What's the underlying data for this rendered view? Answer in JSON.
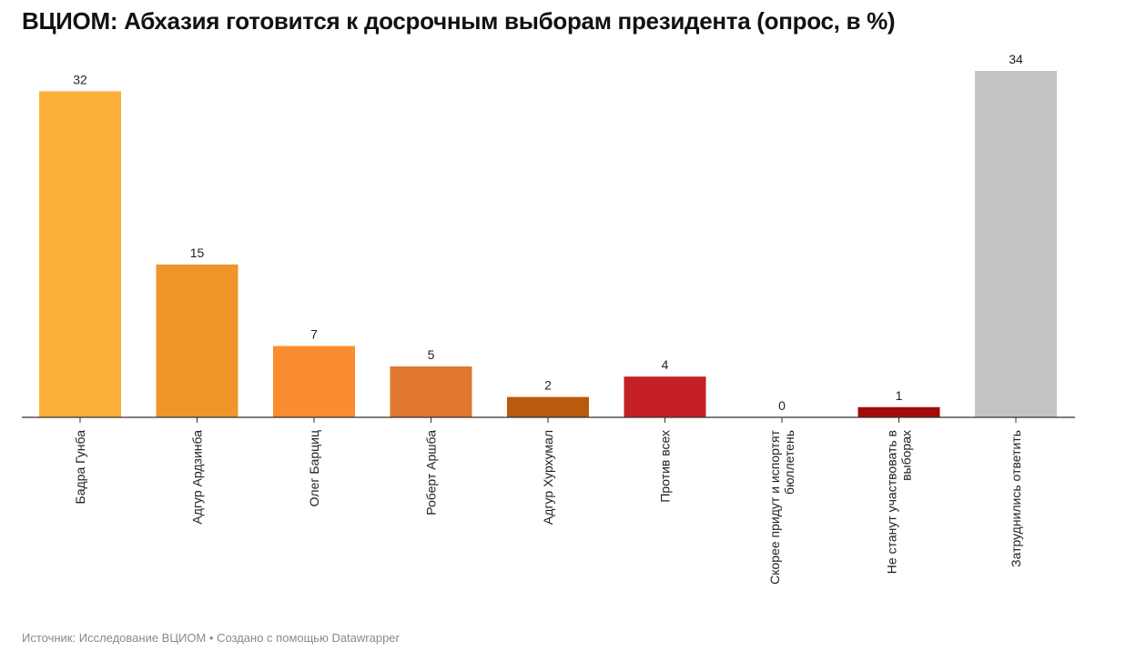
{
  "title": "ВЦИОМ: Абхазия готовится к досрочным выборам президента (опрос, в %)",
  "footer": {
    "source": "Источник: Исследование ВЦИОМ",
    "separator": "•",
    "credit": "Создано с помощью Datawrapper"
  },
  "chart_data": {
    "type": "bar",
    "title": "ВЦИОМ: Абхазия готовится к досрочным выборам президента (опрос, в %)",
    "xlabel": "",
    "ylabel": "",
    "ylim": [
      0,
      34
    ],
    "grid": false,
    "categories": [
      "Бадра Гунба",
      "Адгур Ардзинба",
      "Олег Барциц",
      "Роберт Аршба",
      "Адгур Хурхумал",
      "Против всех",
      "Скорее придут и испортят бюллетень",
      "Не станут участвовать в выборах",
      "Затруднились ответить"
    ],
    "category_lines": [
      [
        "Бадра Гунба"
      ],
      [
        "Адгур Ардзинба"
      ],
      [
        "Олег Барциц"
      ],
      [
        "Роберт Аршба"
      ],
      [
        "Адгур Хурхумал"
      ],
      [
        "Против всех"
      ],
      [
        "Скорее придут и испортят",
        "бюллетень"
      ],
      [
        "Не станут участвовать в",
        "выборах"
      ],
      [
        "Затруднились ответить"
      ]
    ],
    "values": [
      32,
      15,
      7,
      5,
      2,
      4,
      0,
      1,
      34
    ],
    "colors": [
      "#fbb03b",
      "#ee962a",
      "#fb8c2f",
      "#e07832",
      "#b95a0e",
      "#c62027",
      "#c62027",
      "#a30a0a",
      "#c4c4c4"
    ]
  }
}
